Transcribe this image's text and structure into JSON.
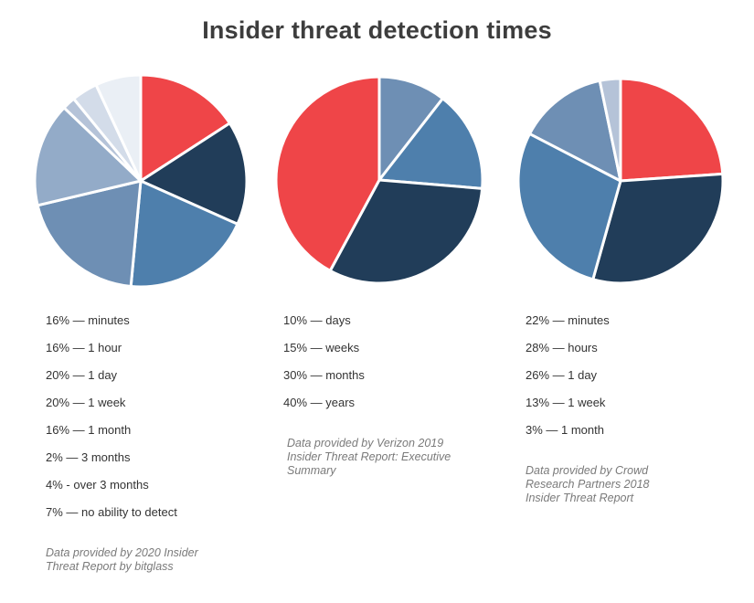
{
  "title": "Insider threat detection times",
  "chart_data": [
    {
      "type": "pie",
      "title": "",
      "slices": [
        {
          "label": "16% — minutes",
          "value": 16,
          "color": "#ef4548"
        },
        {
          "label": "16% — 1 hour",
          "value": 16,
          "color": "#213d59"
        },
        {
          "label": "20% — 1 day",
          "value": 20,
          "color": "#4e7fac"
        },
        {
          "label": "20% — 1 week",
          "value": 20,
          "color": "#6e8fb4"
        },
        {
          "label": "16% — 1 month",
          "value": 16,
          "color": "#93abc8"
        },
        {
          "label": "2% — 3 months",
          "value": 2,
          "color": "#b5c3d8"
        },
        {
          "label": "4% - over 3 months",
          "value": 4,
          "color": "#d3dce9"
        },
        {
          "label": "7% — no ability to detect",
          "value": 7,
          "color": "#eaeff5"
        }
      ],
      "source": "Data provided by 2020 Insider Threat Report by bitglass"
    },
    {
      "type": "pie",
      "title": "",
      "slices": [
        {
          "label": "10% — days",
          "value": 10,
          "color": "#6e8fb4"
        },
        {
          "label": "15% — weeks",
          "value": 15,
          "color": "#4e7fac"
        },
        {
          "label": "30% — months",
          "value": 30,
          "color": "#213d59"
        },
        {
          "label": "40% — years",
          "value": 40,
          "color": "#ef4548"
        }
      ],
      "source": "Data provided by Verizon 2019 Insider Threat Report: Executive Summary"
    },
    {
      "type": "pie",
      "title": "",
      "slices": [
        {
          "label": "22% — minutes",
          "value": 22,
          "color": "#ef4548"
        },
        {
          "label": "28% — hours",
          "value": 28,
          "color": "#213d59"
        },
        {
          "label": "26% — 1 day",
          "value": 26,
          "color": "#4e7fac"
        },
        {
          "label": "13% — 1 week",
          "value": 13,
          "color": "#6e8fb4"
        },
        {
          "label": "3% — 1 month",
          "value": 3,
          "color": "#b5c3d8"
        }
      ],
      "source": "Data provided by Crowd Research Partners 2018 Insider Threat Report"
    }
  ]
}
